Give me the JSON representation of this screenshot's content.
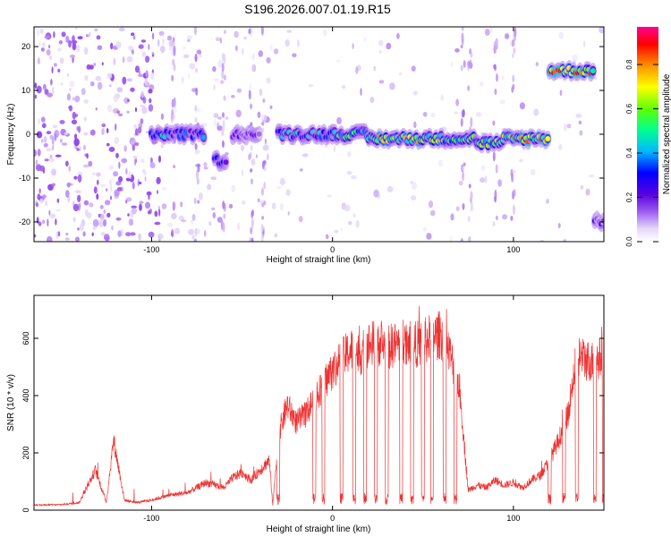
{
  "title": "S196.2026.007.01.19.R15",
  "chart_data": [
    {
      "type": "heatmap",
      "xlabel": "Height of straight line (km)",
      "ylabel": "Frequency (Hz)",
      "xlim": [
        -165,
        150
      ],
      "ylim": [
        -24.5,
        24.5
      ],
      "xticks": [
        -100,
        0,
        100
      ],
      "yticks": [
        -20,
        -10,
        0,
        10,
        20
      ],
      "colorbar": {
        "label": "Normalized spectral amplitude",
        "range": [
          0,
          0.97
        ],
        "ticks": [
          0.0,
          0.2,
          0.4,
          0.6,
          0.8
        ],
        "colormap": [
          "#ffffff",
          "#e0d0f8",
          "#a060f0",
          "#6a00e0",
          "#0000ff",
          "#00c0ff",
          "#00ff80",
          "#80ff00",
          "#ffff00",
          "#ff8000",
          "#ff0000",
          "#ff00a0"
        ]
      },
      "ridge": [
        {
          "x": [
            -100,
            -88
          ],
          "freq": 0,
          "amp": 0.5
        },
        {
          "x": [
            -88,
            -70
          ],
          "freq": 0,
          "amp": 0.45
        },
        {
          "x": [
            -65,
            -58
          ],
          "freq": -6,
          "amp": 0.45
        },
        {
          "x": [
            -55,
            -40
          ],
          "freq": 0,
          "amp": 0.3
        },
        {
          "x": [
            -30,
            0
          ],
          "freq": 0,
          "amp": 0.5
        },
        {
          "x": [
            0,
            20
          ],
          "freq": 0,
          "amp": 0.6
        },
        {
          "x": [
            20,
            60
          ],
          "freq": -1,
          "amp": 0.8
        },
        {
          "x": [
            60,
            80
          ],
          "freq": -1,
          "amp": 0.6
        },
        {
          "x": [
            80,
            95
          ],
          "freq": -2,
          "amp": 0.65
        },
        {
          "x": [
            95,
            120
          ],
          "freq": -1,
          "amp": 0.85
        },
        {
          "x": [
            120,
            145
          ],
          "freq": 14.5,
          "amp": 0.9
        },
        {
          "x": [
            145,
            150
          ],
          "freq": -20,
          "amp": 0.3
        }
      ]
    },
    {
      "type": "line",
      "xlabel": "Height of straight line (km)",
      "ylabel": "SNR (10 * v/v)",
      "xlim": [
        -165,
        150
      ],
      "ylim": [
        0,
        750
      ],
      "xticks": [
        -100,
        0,
        100
      ],
      "yticks": [
        0,
        200,
        400,
        600
      ],
      "color": "#ee3333",
      "series": [
        {
          "x": [
            -165,
            -150,
            -140,
            -131,
            -125,
            -121,
            -115,
            -108,
            -100,
            -90,
            -80,
            -70,
            -60,
            -55,
            -50,
            -45,
            -40,
            -35,
            -33,
            -30,
            -25,
            -20,
            -15,
            -10,
            -5,
            0,
            5,
            10,
            15,
            20,
            25,
            30,
            35,
            40,
            45,
            50,
            55,
            60,
            65,
            70,
            75,
            80,
            85,
            90,
            95,
            100,
            105,
            110,
            115,
            120,
            125,
            130,
            135,
            140,
            145,
            150
          ],
          "y": [
            20,
            22,
            30,
            160,
            30,
            280,
            40,
            30,
            40,
            60,
            70,
            110,
            90,
            130,
            150,
            120,
            160,
            200,
            20,
            300,
            420,
            350,
            380,
            450,
            500,
            560,
            600,
            640,
            620,
            660,
            670,
            650,
            660,
            680,
            660,
            670,
            690,
            700,
            620,
            500,
            80,
            100,
            90,
            120,
            100,
            110,
            90,
            120,
            140,
            200,
            280,
            380,
            620,
            600,
            590,
            620
          ]
        }
      ]
    }
  ]
}
